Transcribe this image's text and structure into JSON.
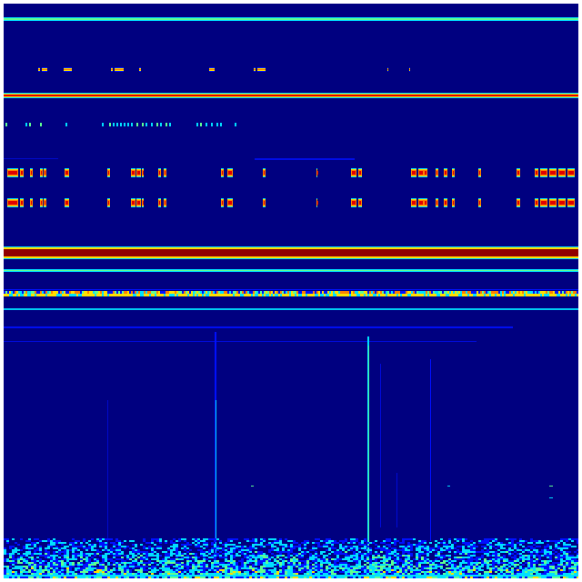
{
  "image": {
    "kind": "spectrogram-heatmap",
    "colormap": "jet",
    "background_color": "#000080",
    "frame_color": "#ffffff",
    "palette": {
      "dark_blue": "#000080",
      "blue": "#0010ff",
      "cyan": "#00e0ff",
      "green": "#60ff90",
      "yellow": "#ffe000",
      "orange": "#ff8000",
      "red": "#e00000",
      "dark_red": "#900000"
    }
  }
}
